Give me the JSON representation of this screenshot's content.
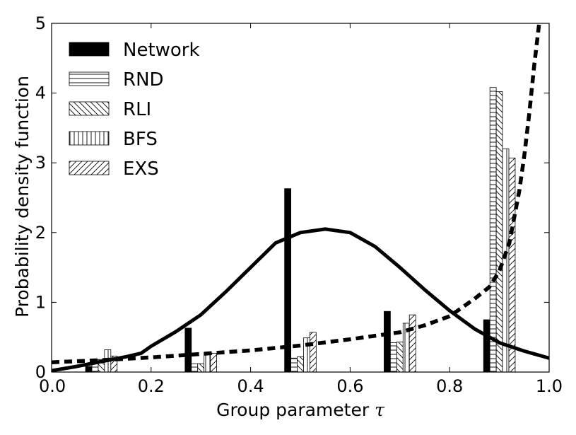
{
  "chart_data": {
    "type": "bar",
    "xlabel": "Group parameter",
    "xlabel_symbol": "τ",
    "ylabel": "Probability density function",
    "xlim": [
      0.0,
      1.0
    ],
    "ylim": [
      0,
      5
    ],
    "x_ticks": [
      "0.0",
      "0.2",
      "0.4",
      "0.6",
      "0.8",
      "1.0"
    ],
    "y_ticks": [
      "0",
      "1",
      "2",
      "3",
      "4",
      "5"
    ],
    "grid": false,
    "legend_position": "top-left",
    "bin_centers": [
      0.1,
      0.3,
      0.5,
      0.7,
      0.9
    ],
    "series": [
      {
        "name": "Network",
        "pattern": "solid",
        "values": [
          0.08,
          0.63,
          2.63,
          0.87,
          0.75
        ]
      },
      {
        "name": "RND",
        "pattern": "horizontal",
        "values": [
          0.18,
          0.12,
          0.2,
          0.42,
          4.08
        ]
      },
      {
        "name": "RLI",
        "pattern": "back-diagonal",
        "values": [
          0.18,
          0.12,
          0.22,
          0.43,
          4.02
        ]
      },
      {
        "name": "BFS",
        "pattern": "vertical",
        "values": [
          0.32,
          0.28,
          0.49,
          0.7,
          3.2
        ]
      },
      {
        "name": "EXS",
        "pattern": "forward-diagonal",
        "values": [
          0.23,
          0.27,
          0.57,
          0.82,
          3.07
        ]
      }
    ],
    "curves": [
      {
        "style": "solid",
        "x": [
          0.0,
          0.05,
          0.1,
          0.15,
          0.18,
          0.2,
          0.25,
          0.3,
          0.35,
          0.4,
          0.45,
          0.5,
          0.55,
          0.6,
          0.65,
          0.7,
          0.75,
          0.8,
          0.85,
          0.9,
          0.95,
          1.0
        ],
        "y": [
          0.02,
          0.08,
          0.15,
          0.22,
          0.27,
          0.37,
          0.58,
          0.82,
          1.15,
          1.5,
          1.85,
          2.0,
          2.05,
          2.0,
          1.8,
          1.5,
          1.18,
          0.88,
          0.62,
          0.42,
          0.3,
          0.2
        ]
      },
      {
        "style": "dashed",
        "x": [
          0.0,
          0.1,
          0.2,
          0.3,
          0.4,
          0.5,
          0.6,
          0.7,
          0.75,
          0.8,
          0.85,
          0.88,
          0.9,
          0.92,
          0.94,
          0.95,
          0.96,
          0.97,
          0.98
        ],
        "y": [
          0.14,
          0.17,
          0.21,
          0.26,
          0.31,
          0.38,
          0.47,
          0.57,
          0.67,
          0.8,
          1.05,
          1.22,
          1.45,
          1.85,
          2.6,
          3.1,
          3.7,
          4.4,
          5.0
        ]
      }
    ]
  }
}
